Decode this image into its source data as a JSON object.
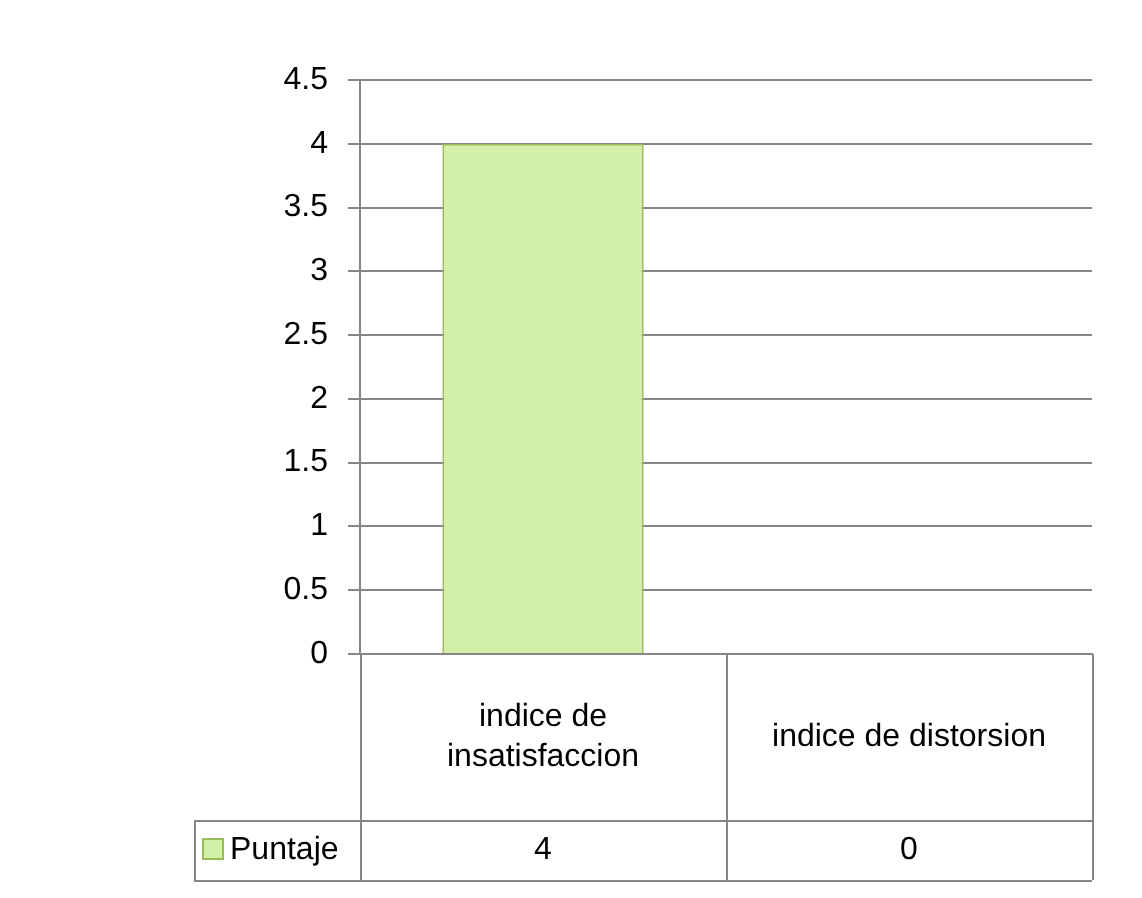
{
  "chart_data": {
    "type": "bar",
    "categories": [
      "indice de insatisfaccion",
      "indice de distorsion"
    ],
    "series": [
      {
        "name": "Puntaje",
        "color": "#d2f0a8",
        "values": [
          4,
          0
        ]
      }
    ],
    "ylim": [
      0,
      4.5
    ],
    "yticks": [
      0,
      0.5,
      1,
      1.5,
      2,
      2.5,
      3,
      3.5,
      4,
      4.5
    ],
    "grid": "y",
    "legend": "bottom",
    "data_labels": true
  }
}
